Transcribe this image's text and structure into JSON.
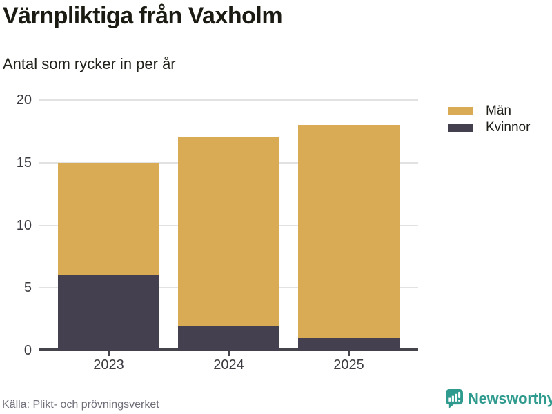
{
  "chart_data": {
    "type": "bar",
    "stacked": true,
    "title": "Värnpliktiga från Vaxholm",
    "subtitle": "Antal som rycker in per år",
    "categories": [
      "2023",
      "2024",
      "2025"
    ],
    "series": [
      {
        "name": "Män",
        "color": "#d9ab55",
        "values": [
          9,
          15,
          17
        ]
      },
      {
        "name": "Kvinnor",
        "color": "#454050",
        "values": [
          6,
          2,
          1
        ]
      }
    ],
    "stack_order_bottom_to_top": [
      "Kvinnor",
      "Män"
    ],
    "totals": [
      15,
      17,
      18
    ],
    "xlabel": "",
    "ylabel": "",
    "ylim": [
      0,
      20
    ],
    "yticks": [
      0,
      5,
      10,
      15,
      20
    ],
    "grid": "horizontal",
    "legend_position": "top-right"
  },
  "footer": {
    "source": "Källa: Plikt- och prövningsverket",
    "brand": "Newsworthy"
  },
  "colors": {
    "men": "#d9ab55",
    "women": "#454050",
    "brand_teal": "#2f9a8e",
    "grid": "#e2e2e2",
    "axis": "#45434b",
    "title_text": "#1c1b13",
    "muted_text": "#6f6e79"
  },
  "icons": {
    "brand_logo": "newsworthy-bar-chart-speech-bubble-icon"
  }
}
